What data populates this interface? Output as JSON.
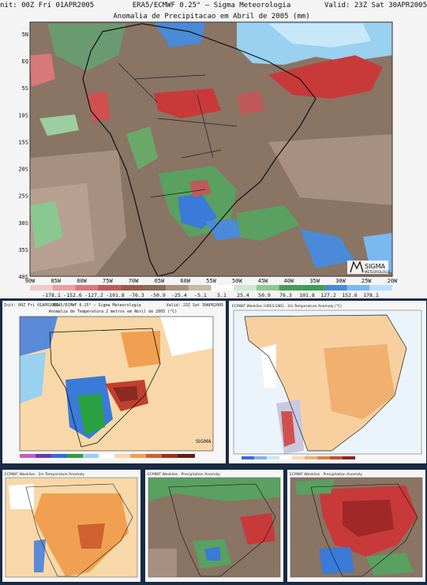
{
  "main_map": {
    "header_left": "nit: 00Z Fri 01APR2005",
    "header_center": "ERA5/ECMWF 0.25° — Sigma Meteorologia",
    "header_right": "Valid: 23Z Sat 30APR2005",
    "title": "Anomalia de Precipitacao em Abril de 2005 (mm)",
    "lat_labels": [
      "5N",
      "EQ",
      "5S",
      "10S",
      "15S",
      "20S",
      "25S",
      "30S",
      "35S",
      "40S"
    ],
    "lon_labels": [
      "90W",
      "85W",
      "80W",
      "75W",
      "70W",
      "65W",
      "60W",
      "55W",
      "50W",
      "45W",
      "40W",
      "35W",
      "30W",
      "25W",
      "20W"
    ],
    "scale_labels": [
      "-178.1",
      "-152.6",
      "-127.2",
      "-101.8",
      "-76.3",
      "-50.9",
      "-25.4",
      "-5.1",
      "5.1",
      "25.4",
      "50.9",
      "76.3",
      "101.8",
      "127.2",
      "152.6",
      "178.1"
    ],
    "scale_colors": [
      "#f4c8c8",
      "#e8a0a0",
      "#d87878",
      "#c05a5a",
      "#9a5a4a",
      "#8a6a5a",
      "#a89080",
      "#c8b8a8",
      "#ffffff",
      "#cfe8cf",
      "#8fc88f",
      "#4a9a5a",
      "#3aa050",
      "#4a8ad8",
      "#7ab8f0",
      "#b8e0ff"
    ],
    "logo": "SIGMA",
    "logo_sub": "METEOROLOGIA"
  },
  "panel_temp": {
    "header_left": "Init: 00Z Fri 01APR2005",
    "header_center": "ERA5/ECMWF 0.25° — Sigma Meteorologia",
    "header_right": "Valid: 23Z Sat 30APR2005",
    "title": "Anomalia de Temperatura 2 metros em Abril de 2005 (°C)",
    "logo": "SIGMA"
  },
  "panel_forecast": {
    "header": "ECMWF Weeklies (HRES ENS) · 2m Temperature Anomaly (°C)"
  },
  "bottom_panels": [
    {
      "header": "ECMWF Weeklies · 2m Temperature Anomaly"
    },
    {
      "header": "ECMWF Weeklies · Precipitation Anomaly"
    },
    {
      "header": "ECMWF Weeklies · Precipitation Anomaly"
    }
  ],
  "colors": {
    "brown": "#8a7464",
    "brown_dark": "#6f5a4c",
    "red": "#c83a3a",
    "green": "#5aa060",
    "blue": "#3a7ad8",
    "light_blue": "#9ad0f0",
    "orange": "#f0a050",
    "light_orange": "#f8d8a8",
    "page_bg": "#1a2a44"
  }
}
